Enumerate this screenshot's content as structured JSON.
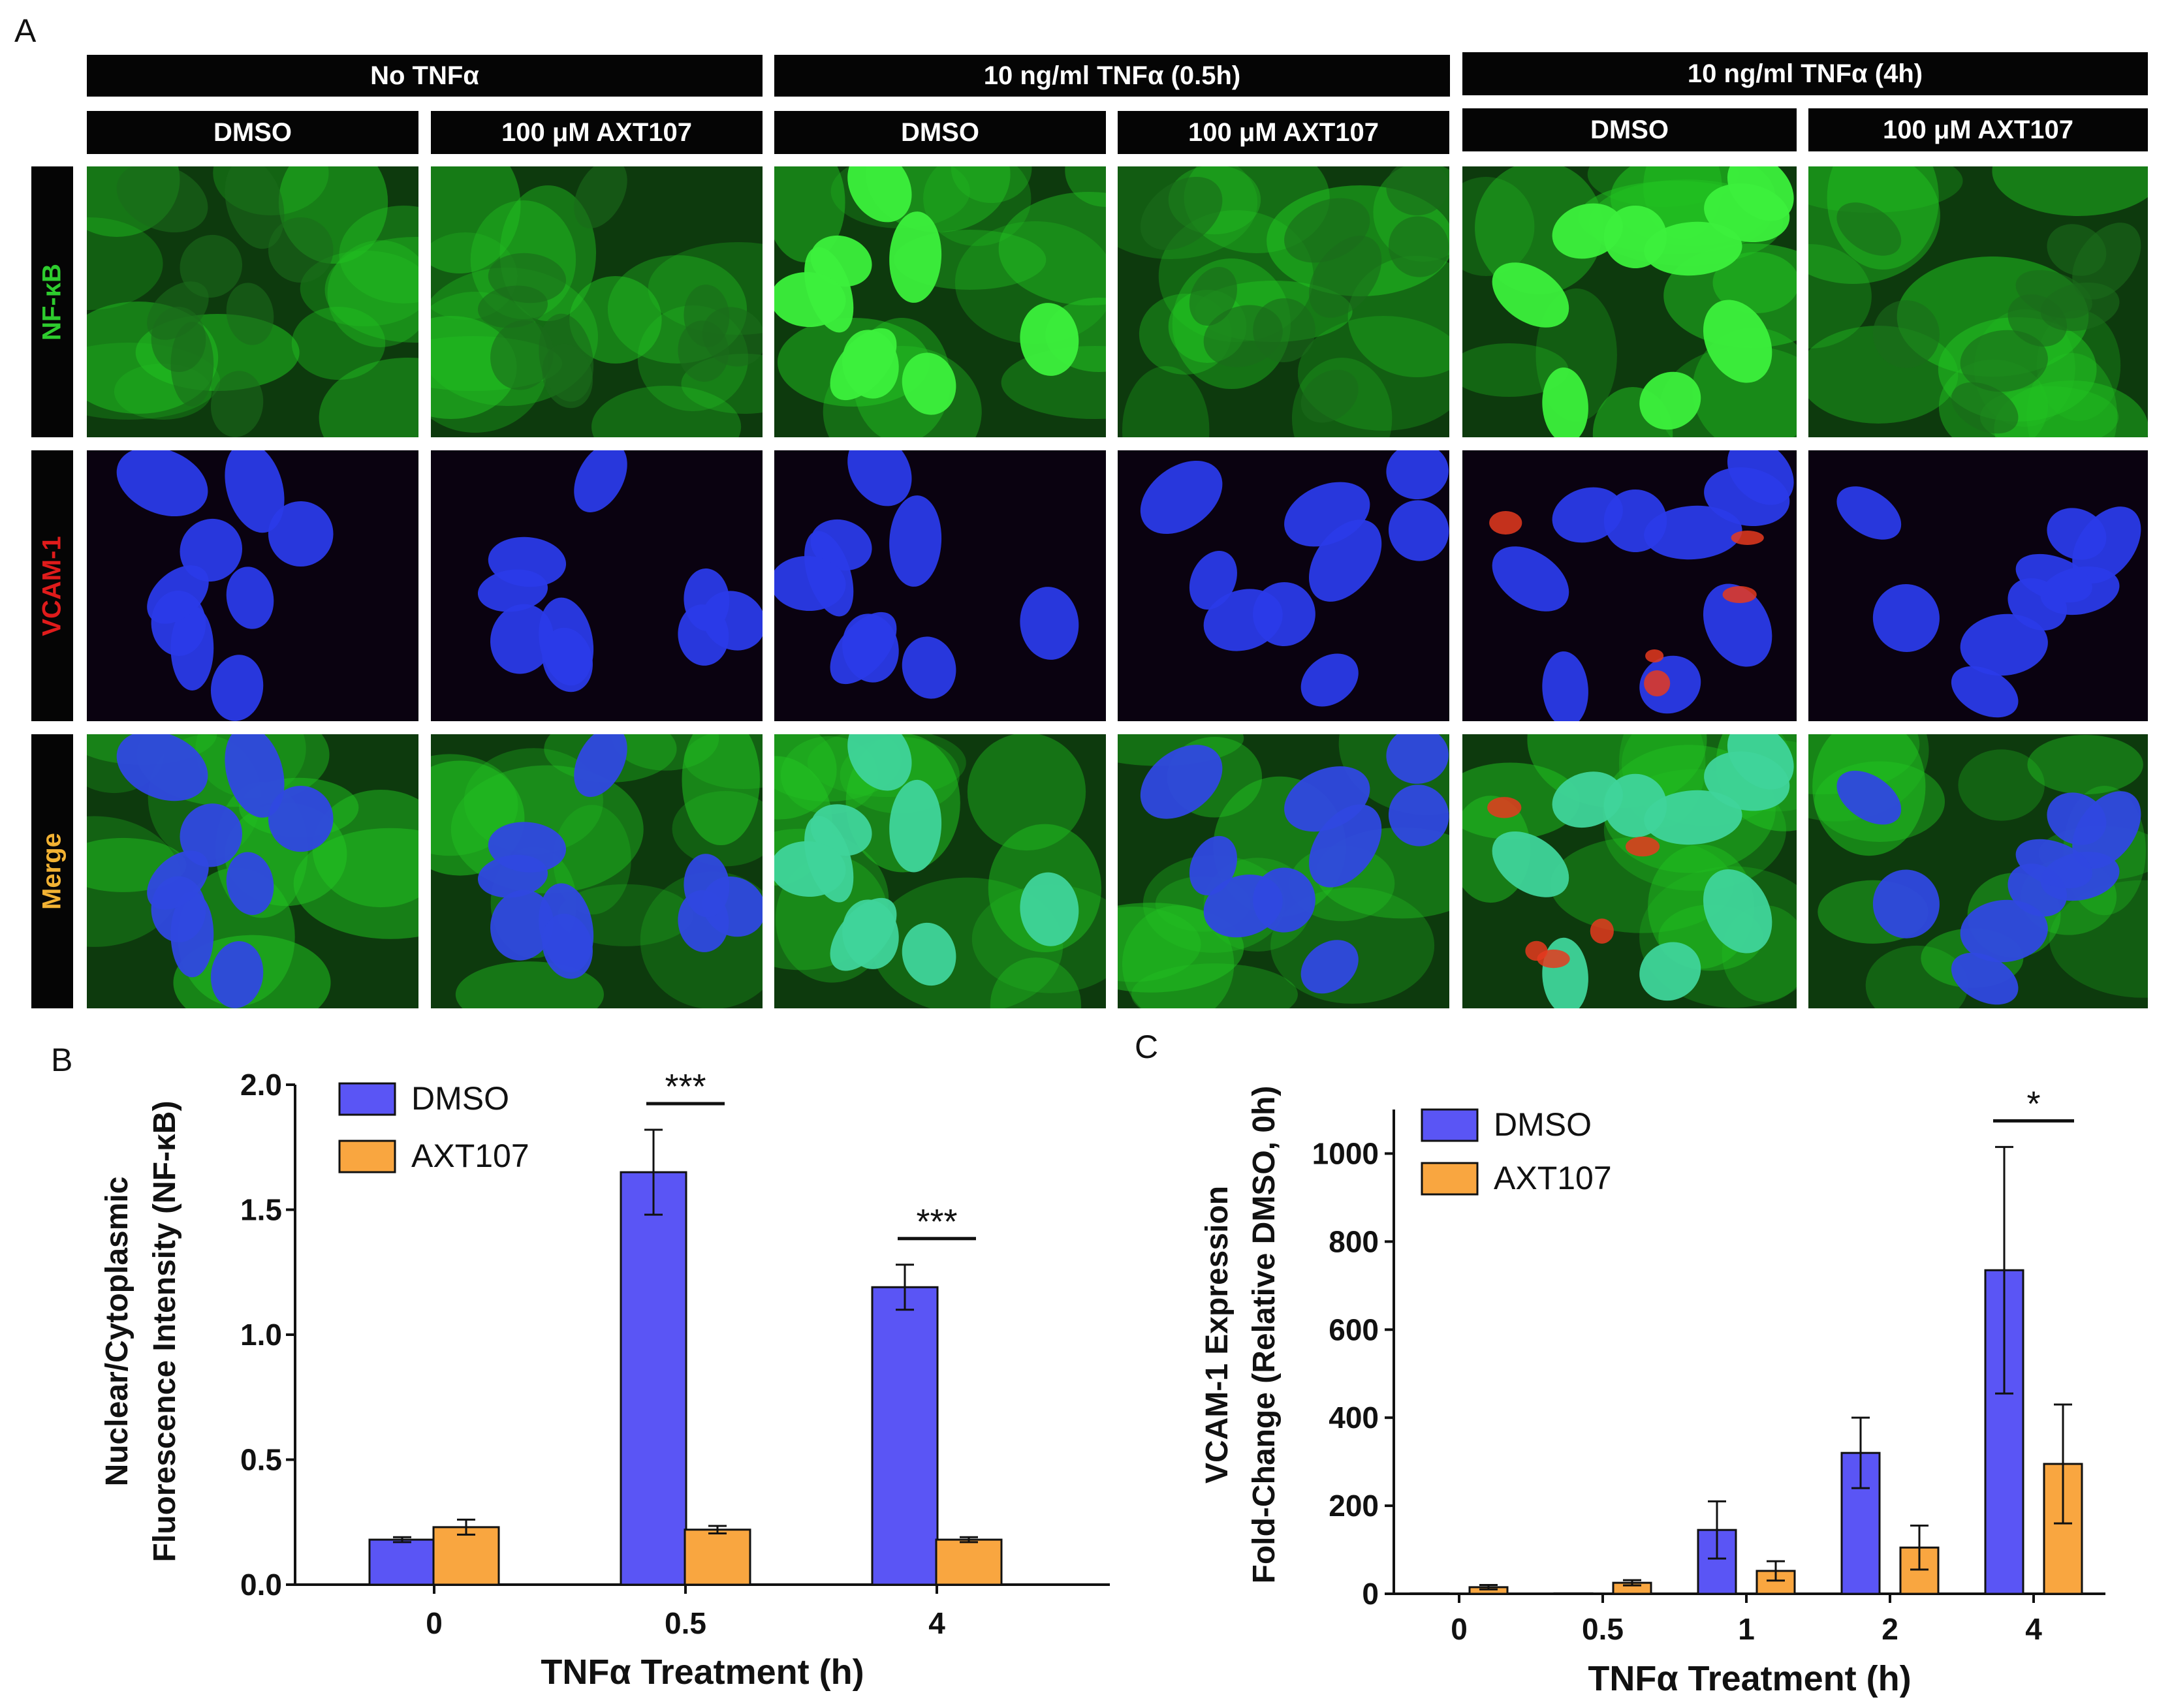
{
  "panel_labels": [
    "A",
    "B",
    "C"
  ],
  "panelA": {
    "condition_headers": [
      "No TNFα",
      "10 ng/ml TNFα (0.5h)",
      "10 ng/ml TNFα (4h)"
    ],
    "treatment_headers": [
      "DMSO",
      "100 μM AXT107",
      "DMSO",
      "100 μM AXT107",
      "DMSO",
      "100 μM AXT107"
    ],
    "row_labels": [
      {
        "text": "NF-κB",
        "color": "#2ecc2e"
      },
      {
        "text": "VCAM-1",
        "color": "#e01b1b"
      },
      {
        "text": "Merge",
        "color": "#f2b233"
      }
    ],
    "channel_colors": {
      "nfkb": "#22c322",
      "nucleus": "#2a3ae8",
      "vcam": "#e53a1e"
    }
  },
  "chart_data": [
    {
      "type": "bar",
      "panel": "B",
      "categories": [
        "0",
        "0.5",
        "4"
      ],
      "series": [
        {
          "name": "DMSO",
          "color": "#5a55f5",
          "values": [
            0.18,
            1.65,
            1.19
          ],
          "errors": [
            0.01,
            0.17,
            0.09
          ]
        },
        {
          "name": "AXT107",
          "color": "#f9a640",
          "values": [
            0.23,
            0.22,
            0.18
          ],
          "errors": [
            0.03,
            0.015,
            0.01
          ]
        }
      ],
      "xlabel": "TNFα Treatment (h)",
      "ylabel_lines": [
        "Nuclear/Cytoplasmic",
        "Fluorescence Intensity (NF-κB)"
      ],
      "ylim": [
        0,
        2.0
      ],
      "yticks": [
        "0.0",
        "0.5",
        "1.0",
        "1.5",
        "2.0"
      ],
      "ytick_values": [
        0,
        0.5,
        1.0,
        1.5,
        2.0
      ],
      "significance": [
        {
          "category": "0.5",
          "label": "***"
        },
        {
          "category": "4",
          "label": "***"
        }
      ],
      "legend": "top-left",
      "grid": false
    },
    {
      "type": "bar",
      "panel": "C",
      "categories": [
        "0",
        "0.5",
        "1",
        "2",
        "4"
      ],
      "series": [
        {
          "name": "DMSO",
          "color": "#5a55f5",
          "values": [
            1,
            1,
            145,
            320,
            735
          ],
          "errors": [
            0,
            0,
            65,
            80,
            280
          ]
        },
        {
          "name": "AXT107",
          "color": "#f9a640",
          "values": [
            15,
            25,
            52,
            105,
            295
          ],
          "errors": [
            5,
            6,
            22,
            50,
            135
          ]
        }
      ],
      "xlabel": "TNFα Treatment (h)",
      "ylabel_lines": [
        "VCAM-1 Expression",
        "Fold-Change (Relative DMSO, 0h)"
      ],
      "ylim": [
        0,
        1100
      ],
      "yticks": [
        "0",
        "200",
        "400",
        "600",
        "800",
        "1000"
      ],
      "ytick_values": [
        0,
        200,
        400,
        600,
        800,
        1000
      ],
      "significance": [
        {
          "category": "4",
          "label": "*"
        }
      ],
      "legend": "top-left",
      "grid": false
    }
  ]
}
